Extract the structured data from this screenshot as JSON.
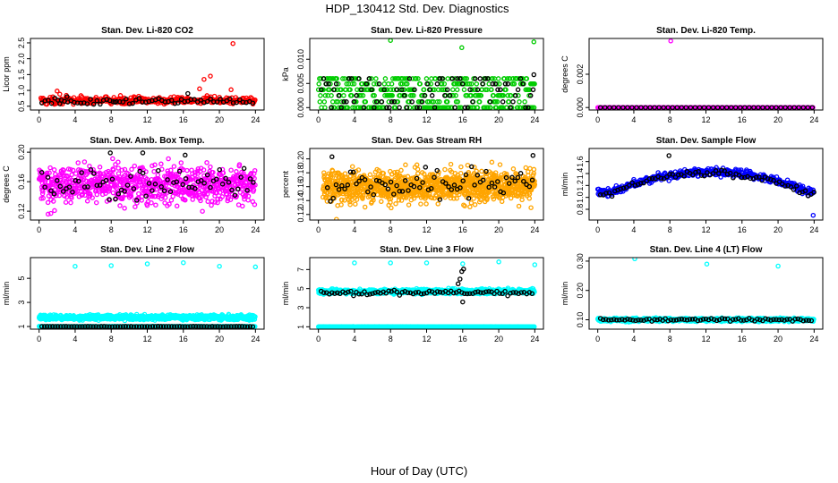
{
  "title": "HDP_130412  Std. Dev. Diagnostics",
  "xlabel": "Hour of Day (UTC)",
  "chart_data": [
    {
      "type": "scatter",
      "title": "Stan. Dev. Li-820 CO2",
      "ylabel": "Licor ppm",
      "xlim": [
        -0.96,
        24.96
      ],
      "ylim": [
        0.38,
        2.64
      ],
      "xticks": [
        "0",
        "4",
        "8",
        "12",
        "16",
        "20",
        "24"
      ],
      "yticks": [
        "0.5",
        "1.0",
        "1.5",
        "2.0",
        "2.5"
      ],
      "colors": {
        "main": "#ff0000",
        "secondary": "#000000"
      },
      "series": [
        {
          "kind": "noise",
          "color": "#ff0000",
          "base": 0.68,
          "spread": 0.16,
          "step": 0.06,
          "x0": 0.2,
          "x1": 24
        },
        {
          "kind": "noise",
          "color": "#000000",
          "base": 0.65,
          "spread": 0.13,
          "step": 0.36,
          "x0": 0.3,
          "x1": 24
        },
        {
          "kind": "points",
          "color": "#ff0000",
          "x": [
            2.0,
            2.3,
            17.8,
            18.3,
            19.0,
            21.3,
            21.5
          ],
          "y": [
            0.98,
            0.88,
            1.05,
            1.35,
            1.45,
            1.02,
            2.48
          ]
        },
        {
          "kind": "points",
          "color": "#000000",
          "x": [
            2.3,
            3.1,
            8.4,
            16.5
          ],
          "y": [
            0.58,
            0.8,
            0.63,
            0.9
          ]
        }
      ]
    },
    {
      "type": "scatter",
      "title": "Stan. Dev. Li-820 Pressure",
      "ylabel": "kPa",
      "xlim": [
        -0.96,
        24.96
      ],
      "ylim": [
        -0.0005,
        0.0143
      ],
      "xticks": [
        "0",
        "4",
        "8",
        "12",
        "16",
        "20",
        "24"
      ],
      "yticks": [
        "0.000",
        "0.005",
        "0.010"
      ],
      "colors": {
        "main": "#00cc00",
        "secondary": "#000000"
      },
      "series": [
        {
          "kind": "levels",
          "color": "#00cc00",
          "levels": [
            0,
            0.0012,
            0.0025,
            0.0037,
            0.0049,
            0.006
          ],
          "probs": [
            0.22,
            0.14,
            0.16,
            0.16,
            0.16,
            0.16
          ],
          "step": 0.055,
          "x0": 0,
          "x1": 24
        },
        {
          "kind": "levels",
          "color": "#000000",
          "levels": [
            0,
            0.0012,
            0.0025,
            0.0037,
            0.0049,
            0.006
          ],
          "probs": [
            0.3,
            0.14,
            0.14,
            0.14,
            0.14,
            0.14
          ],
          "step": 0.28,
          "x0": 0.3,
          "x1": 24
        },
        {
          "kind": "points",
          "color": "#00cc00",
          "x": [
            8.0,
            15.9,
            23.9
          ],
          "y": [
            0.0139,
            0.0124,
            0.0136
          ]
        },
        {
          "kind": "points",
          "color": "#000000",
          "x": [
            23.9
          ],
          "y": [
            0.0068
          ]
        }
      ]
    },
    {
      "type": "scatter",
      "title": "Stan. Dev. Li-820 Temp.",
      "ylabel": "degrees C",
      "xlim": [
        -0.96,
        24.96
      ],
      "ylim": [
        -0.00015,
        0.00415
      ],
      "xticks": [
        "0",
        "4",
        "8",
        "12",
        "16",
        "20",
        "24"
      ],
      "yticks": [
        "0.000",
        "0.002"
      ],
      "colors": {
        "main": "#ff00ff",
        "secondary": "#000000"
      },
      "series": [
        {
          "kind": "noise",
          "color": "#ff00ff",
          "base": 0.0,
          "spread": 0.0,
          "step": 0.12,
          "x0": 0,
          "x1": 24
        },
        {
          "kind": "noise",
          "color": "#000000",
          "base": 0.0,
          "spread": 0.0,
          "step": 0.5,
          "x0": 0.3,
          "x1": 24
        },
        {
          "kind": "points",
          "color": "#ff00ff",
          "x": [
            8.1
          ],
          "y": [
            0.004
          ]
        }
      ]
    },
    {
      "type": "scatter",
      "title": "Stan. Dev. Amb. Box Temp.",
      "ylabel": "degrees C",
      "xlim": [
        -0.96,
        24.96
      ],
      "ylim": [
        0.108,
        0.205
      ],
      "xticks": [
        "0",
        "4",
        "8",
        "12",
        "16",
        "20",
        "24"
      ],
      "yticks": [
        "0.12",
        "0.16",
        "0.20"
      ],
      "colors": {
        "main": "#ff00ff",
        "secondary": "#000000"
      },
      "series": [
        {
          "kind": "noise",
          "color": "#ff00ff",
          "base": 0.156,
          "spread": 0.036,
          "step": 0.03,
          "x0": 0,
          "x1": 24
        },
        {
          "kind": "noise",
          "color": "#000000",
          "base": 0.156,
          "spread": 0.03,
          "step": 0.34,
          "x0": 0.3,
          "x1": 24
        },
        {
          "kind": "points",
          "color": "#000000",
          "x": [
            7.9,
            11.5,
            16.2
          ],
          "y": [
            0.199,
            0.199,
            0.196
          ]
        },
        {
          "kind": "points",
          "color": "#ff00ff",
          "x": [
            1.0,
            1.3
          ],
          "y": [
            0.116,
            0.117
          ]
        }
      ]
    },
    {
      "type": "scatter",
      "title": "Stan. Dev. Gas Stream RH",
      "ylabel": "percent",
      "xlim": [
        -0.96,
        24.96
      ],
      "ylim": [
        0.112,
        0.215
      ],
      "xticks": [
        "0",
        "4",
        "8",
        "12",
        "16",
        "20",
        "24"
      ],
      "yticks": [
        "0.12",
        "0.14",
        "0.16",
        "0.18",
        "0.20"
      ],
      "colors": {
        "main": "#ffa500",
        "secondary": "#000000"
      },
      "series": [
        {
          "kind": "noise",
          "color": "#ffa500",
          "base": 0.161,
          "spread": 0.033,
          "step": 0.022,
          "x0": 0.5,
          "x1": 24
        },
        {
          "kind": "noise",
          "color": "#000000",
          "base": 0.163,
          "spread": 0.03,
          "step": 0.32,
          "x0": 1,
          "x1": 24
        },
        {
          "kind": "points",
          "color": "#000000",
          "x": [
            1.5,
            23.8
          ],
          "y": [
            0.203,
            0.205
          ]
        },
        {
          "kind": "points",
          "color": "#ffa500",
          "x": [
            2.0
          ],
          "y": [
            0.113
          ]
        }
      ]
    },
    {
      "type": "scatter",
      "title": "Stan. Dev. Sample Flow",
      "ylabel": "ml/min",
      "xlim": [
        -0.96,
        24.96
      ],
      "ylim": [
        0.62,
        1.82
      ],
      "xticks": [
        "0",
        "4",
        "8",
        "12",
        "16",
        "20",
        "24"
      ],
      "yticks": [
        "0.8",
        "1.0",
        "1.2",
        "1.4",
        "1.6"
      ],
      "colors": {
        "main": "#0000ff",
        "secondary": "#000000"
      },
      "series": [
        {
          "kind": "arch",
          "color": "#0000ff",
          "base": 1.08,
          "peak": 1.43,
          "center": 12.5,
          "width": 11,
          "spread": 0.09,
          "step": 0.05,
          "x0": 0,
          "x1": 24
        },
        {
          "kind": "arch",
          "color": "#000000",
          "base": 1.06,
          "peak": 1.41,
          "center": 12.5,
          "width": 11,
          "spread": 0.07,
          "step": 0.32,
          "x0": 0.3,
          "x1": 24
        },
        {
          "kind": "points",
          "color": "#0000ff",
          "x": [
            23.9
          ],
          "y": [
            0.7
          ]
        },
        {
          "kind": "points",
          "color": "#000000",
          "x": [
            7.9
          ],
          "y": [
            1.7
          ]
        }
      ]
    },
    {
      "type": "scatter",
      "title": "Stan. Dev. Line 2 Flow",
      "ylabel": "ml/min",
      "xlim": [
        -0.96,
        24.96
      ],
      "ylim": [
        0.78,
        6.72
      ],
      "xticks": [
        "0",
        "4",
        "8",
        "12",
        "16",
        "20",
        "24"
      ],
      "yticks": [
        "1",
        "3",
        "5"
      ],
      "colors": {
        "main": "#00ffff",
        "secondary": "#000000"
      },
      "series": [
        {
          "kind": "noise",
          "color": "#00ffff",
          "base": 1.75,
          "spread": 0.28,
          "step": 0.03,
          "x0": 0,
          "x1": 24
        },
        {
          "kind": "noise",
          "color": "#00ffff",
          "base": 1.0,
          "spread": 0.02,
          "step": 0.05,
          "x0": 0,
          "x1": 24
        },
        {
          "kind": "noise",
          "color": "#000000",
          "base": 1.0,
          "spread": 0.02,
          "step": 0.3,
          "x0": 0.3,
          "x1": 24
        },
        {
          "kind": "points",
          "color": "#00ffff",
          "x": [
            4,
            8,
            12,
            16,
            20,
            24
          ],
          "y": [
            6.0,
            6.05,
            6.2,
            6.3,
            6.0,
            5.95
          ]
        }
      ]
    },
    {
      "type": "scatter",
      "title": "Stan. Dev. Line 3 Flow",
      "ylabel": "ml/min",
      "xlim": [
        -0.96,
        24.96
      ],
      "ylim": [
        0.75,
        8.25
      ],
      "xticks": [
        "0",
        "4",
        "8",
        "12",
        "16",
        "20",
        "24"
      ],
      "yticks": [
        "1",
        "3",
        "5",
        "7"
      ],
      "colors": {
        "main": "#00ffff",
        "secondary": "#000000"
      },
      "series": [
        {
          "kind": "noise",
          "color": "#00ffff",
          "base": 4.7,
          "spread": 0.35,
          "step": 0.03,
          "x0": 0,
          "x1": 24
        },
        {
          "kind": "noise",
          "color": "#00ffff",
          "base": 1.0,
          "spread": 0.03,
          "step": 0.05,
          "x0": 0,
          "x1": 24
        },
        {
          "kind": "noise",
          "color": "#000000",
          "base": 4.55,
          "spread": 0.35,
          "step": 0.3,
          "x0": 0.3,
          "x1": 24
        },
        {
          "kind": "points",
          "color": "#00ffff",
          "x": [
            4,
            8,
            12,
            16,
            20,
            24
          ],
          "y": [
            7.7,
            7.7,
            7.7,
            7.6,
            7.8,
            7.5
          ]
        },
        {
          "kind": "points",
          "color": "#000000",
          "x": [
            15.5,
            15.7,
            15.9,
            16.0,
            16.1
          ],
          "y": [
            5.5,
            6.0,
            6.8,
            3.6,
            7.05
          ]
        }
      ]
    },
    {
      "type": "scatter",
      "title": "Stan. Dev. Line 4 (LT) Flow",
      "ylabel": "ml/min",
      "xlim": [
        -0.96,
        24.96
      ],
      "ylim": [
        0.068,
        0.312
      ],
      "xticks": [
        "0",
        "4",
        "8",
        "12",
        "16",
        "20",
        "24"
      ],
      "yticks": [
        "0.10",
        "0.20",
        "0.30"
      ],
      "colors": {
        "main": "#00ffff",
        "secondary": "#000000"
      },
      "series": [
        {
          "kind": "noise",
          "color": "#00ffff",
          "base": 0.1,
          "spread": 0.008,
          "step": 0.03,
          "x0": 0,
          "x1": 24
        },
        {
          "kind": "noise",
          "color": "#000000",
          "base": 0.1,
          "spread": 0.007,
          "step": 0.3,
          "x0": 0.3,
          "x1": 24
        },
        {
          "kind": "points",
          "color": "#00ffff",
          "x": [
            4.1,
            12.1,
            20.0
          ],
          "y": [
            0.308,
            0.29,
            0.283
          ]
        }
      ]
    }
  ]
}
